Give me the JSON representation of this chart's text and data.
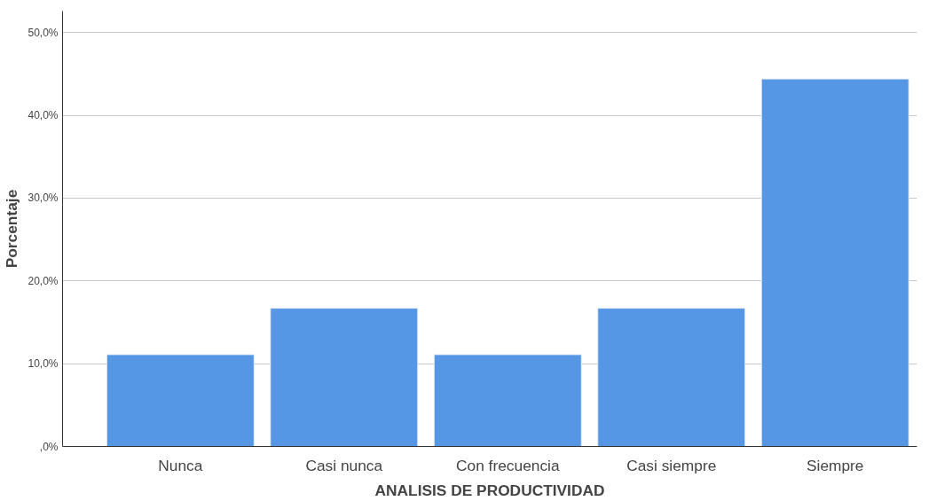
{
  "chart_data": {
    "type": "bar",
    "xlabel": "ANALISIS DE PRODUCTIVIDAD",
    "ylabel": "Porcentaje",
    "categories": [
      "Nunca",
      "Casi nunca",
      "Con frecuencia",
      "Casi siempre",
      "Siempre"
    ],
    "values": [
      11.1,
      16.7,
      11.1,
      16.7,
      44.4
    ],
    "color": "#5596e5",
    "ylim": [
      0,
      52.6
    ],
    "yticks": [
      {
        "value": 0,
        "label": ",0%"
      },
      {
        "value": 10,
        "label": "10,0%"
      },
      {
        "value": 20,
        "label": "20,0%"
      },
      {
        "value": 30,
        "label": "30,0%"
      },
      {
        "value": 40,
        "label": "40,0%"
      },
      {
        "value": 50,
        "label": "50,0%"
      }
    ],
    "grid": "y"
  }
}
